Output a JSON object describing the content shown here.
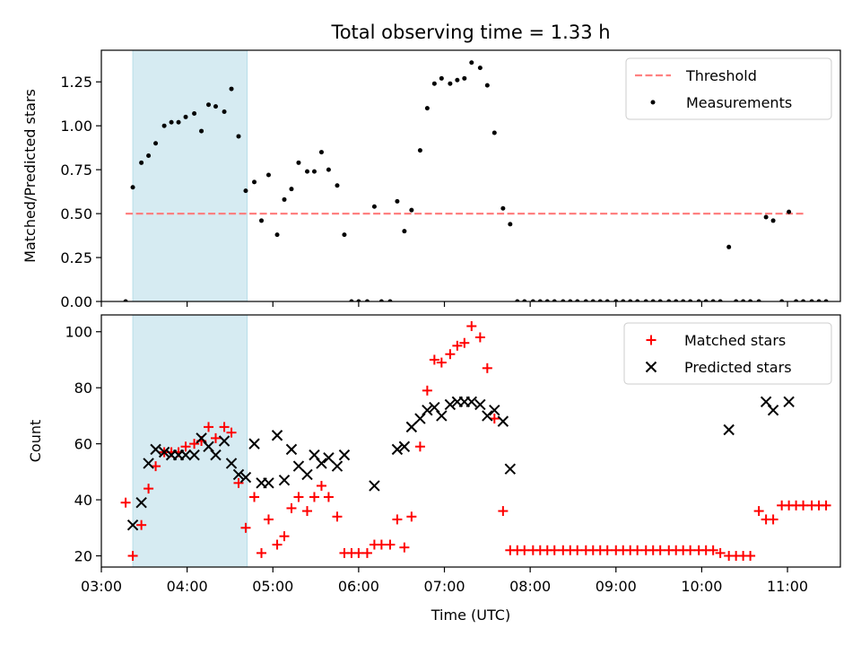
{
  "figure": {
    "title": "Total observing time = 1.33 h"
  },
  "colors": {
    "threshold": "#ff8080",
    "measurement": "#000000",
    "matched": "#ff0000",
    "predicted": "#000000",
    "shade": "#add8e6"
  },
  "chart_data": [
    {
      "type": "scatter",
      "panel": "top",
      "xlabel": "",
      "ylabel": "Matched/Predicted stars",
      "xlim": [
        "03:00",
        "11:37"
      ],
      "ylim": [
        0,
        1.43
      ],
      "yticks": [
        0.0,
        0.25,
        0.5,
        0.75,
        1.0,
        1.25
      ],
      "ytick_labels": [
        "0.00",
        "0.25",
        "0.50",
        "0.75",
        "1.00",
        "1.25"
      ],
      "shaded_region": [
        "03:22",
        "04:42"
      ],
      "legend": {
        "position": "top-right",
        "entries": [
          "Threshold",
          "Measurements"
        ]
      },
      "threshold": {
        "name": "Threshold",
        "value": 0.5,
        "x_range": [
          "03:17",
          "11:12"
        ],
        "style": "dashed"
      },
      "series": [
        {
          "name": "Measurements",
          "points": [
            [
              "03:17",
              0.0
            ],
            [
              "03:22",
              0.65
            ],
            [
              "03:28",
              0.79
            ],
            [
              "03:33",
              0.83
            ],
            [
              "03:38",
              0.9
            ],
            [
              "03:44",
              1.0
            ],
            [
              "03:49",
              1.02
            ],
            [
              "03:54",
              1.02
            ],
            [
              "03:59",
              1.05
            ],
            [
              "04:05",
              1.07
            ],
            [
              "04:10",
              0.97
            ],
            [
              "04:15",
              1.12
            ],
            [
              "04:20",
              1.11
            ],
            [
              "04:26",
              1.08
            ],
            [
              "04:31",
              1.21
            ],
            [
              "04:36",
              0.94
            ],
            [
              "04:41",
              0.63
            ],
            [
              "04:47",
              0.68
            ],
            [
              "04:52",
              0.46
            ],
            [
              "04:57",
              0.72
            ],
            [
              "05:03",
              0.38
            ],
            [
              "05:08",
              0.58
            ],
            [
              "05:13",
              0.64
            ],
            [
              "05:18",
              0.79
            ],
            [
              "05:24",
              0.74
            ],
            [
              "05:29",
              0.74
            ],
            [
              "05:34",
              0.85
            ],
            [
              "05:39",
              0.75
            ],
            [
              "05:45",
              0.66
            ],
            [
              "05:50",
              0.38
            ],
            [
              "05:55",
              0.0
            ],
            [
              "06:00",
              0.0
            ],
            [
              "06:06",
              0.0
            ],
            [
              "06:11",
              0.54
            ],
            [
              "06:16",
              0.0
            ],
            [
              "06:22",
              0.0
            ],
            [
              "06:27",
              0.57
            ],
            [
              "06:32",
              0.4
            ],
            [
              "06:37",
              0.52
            ],
            [
              "06:43",
              0.86
            ],
            [
              "06:48",
              1.1
            ],
            [
              "06:53",
              1.24
            ],
            [
              "06:58",
              1.27
            ],
            [
              "07:04",
              1.24
            ],
            [
              "07:09",
              1.26
            ],
            [
              "07:14",
              1.27
            ],
            [
              "07:19",
              1.36
            ],
            [
              "07:25",
              1.33
            ],
            [
              "07:30",
              1.23
            ],
            [
              "07:35",
              0.96
            ],
            [
              "07:41",
              0.53
            ],
            [
              "07:46",
              0.44
            ],
            [
              "07:51",
              0.0
            ],
            [
              "07:56",
              0.0
            ],
            [
              "08:02",
              0.0
            ],
            [
              "08:07",
              0.0
            ],
            [
              "08:12",
              0.0
            ],
            [
              "08:17",
              0.0
            ],
            [
              "08:23",
              0.0
            ],
            [
              "08:28",
              0.0
            ],
            [
              "08:33",
              0.0
            ],
            [
              "08:39",
              0.0
            ],
            [
              "08:44",
              0.0
            ],
            [
              "08:49",
              0.0
            ],
            [
              "08:54",
              0.0
            ],
            [
              "09:00",
              0.0
            ],
            [
              "09:05",
              0.0
            ],
            [
              "09:10",
              0.0
            ],
            [
              "09:15",
              0.0
            ],
            [
              "09:21",
              0.0
            ],
            [
              "09:26",
              0.0
            ],
            [
              "09:31",
              0.0
            ],
            [
              "09:37",
              0.0
            ],
            [
              "09:42",
              0.0
            ],
            [
              "09:47",
              0.0
            ],
            [
              "09:52",
              0.0
            ],
            [
              "09:58",
              0.0
            ],
            [
              "10:03",
              0.0
            ],
            [
              "10:08",
              0.0
            ],
            [
              "10:13",
              0.0
            ],
            [
              "10:19",
              0.31
            ],
            [
              "10:24",
              0.0
            ],
            [
              "10:29",
              0.0
            ],
            [
              "10:34",
              0.0
            ],
            [
              "10:40",
              0.0
            ],
            [
              "10:45",
              0.48
            ],
            [
              "10:50",
              0.46
            ],
            [
              "10:56",
              0.0
            ],
            [
              "11:01",
              0.51
            ],
            [
              "11:06",
              0.0
            ],
            [
              "11:11",
              0.0
            ],
            [
              "11:17",
              0.0
            ],
            [
              "11:22",
              0.0
            ],
            [
              "11:27",
              0.0
            ]
          ]
        }
      ]
    },
    {
      "type": "scatter",
      "panel": "bottom",
      "xlabel": "Time (UTC)",
      "ylabel": "Count",
      "xlim": [
        "03:00",
        "11:37"
      ],
      "ylim": [
        16,
        106
      ],
      "xticks": [
        "03:00",
        "04:00",
        "05:00",
        "06:00",
        "07:00",
        "08:00",
        "09:00",
        "10:00",
        "11:00"
      ],
      "yticks": [
        20,
        40,
        60,
        80,
        100
      ],
      "ytick_labels": [
        "20",
        "40",
        "60",
        "80",
        "100"
      ],
      "shaded_region": [
        "03:22",
        "04:42"
      ],
      "legend": {
        "position": "top-right",
        "entries": [
          "Matched stars",
          "Predicted stars"
        ]
      },
      "series": [
        {
          "name": "Matched stars",
          "marker": "plus",
          "points": [
            [
              "03:17",
              39
            ],
            [
              "03:22",
              20
            ],
            [
              "03:28",
              31
            ],
            [
              "03:33",
              44
            ],
            [
              "03:38",
              52
            ],
            [
              "03:44",
              57
            ],
            [
              "03:49",
              57
            ],
            [
              "03:54",
              57
            ],
            [
              "03:59",
              59
            ],
            [
              "04:05",
              60
            ],
            [
              "04:10",
              61
            ],
            [
              "04:15",
              66
            ],
            [
              "04:20",
              62
            ],
            [
              "04:26",
              66
            ],
            [
              "04:31",
              64
            ],
            [
              "04:36",
              46
            ],
            [
              "04:41",
              30
            ],
            [
              "04:47",
              41
            ],
            [
              "04:52",
              21
            ],
            [
              "04:57",
              33
            ],
            [
              "05:03",
              24
            ],
            [
              "05:08",
              27
            ],
            [
              "05:13",
              37
            ],
            [
              "05:18",
              41
            ],
            [
              "05:24",
              36
            ],
            [
              "05:29",
              41
            ],
            [
              "05:34",
              45
            ],
            [
              "05:39",
              41
            ],
            [
              "05:45",
              34
            ],
            [
              "05:50",
              21
            ],
            [
              "05:55",
              21
            ],
            [
              "06:00",
              21
            ],
            [
              "06:06",
              21
            ],
            [
              "06:11",
              24
            ],
            [
              "06:16",
              24
            ],
            [
              "06:22",
              24
            ],
            [
              "06:27",
              33
            ],
            [
              "06:32",
              23
            ],
            [
              "06:37",
              34
            ],
            [
              "06:43",
              59
            ],
            [
              "06:48",
              79
            ],
            [
              "06:53",
              90
            ],
            [
              "06:58",
              89
            ],
            [
              "07:04",
              92
            ],
            [
              "07:09",
              95
            ],
            [
              "07:14",
              96
            ],
            [
              "07:19",
              102
            ],
            [
              "07:25",
              98
            ],
            [
              "07:30",
              87
            ],
            [
              "07:35",
              69
            ],
            [
              "07:41",
              36
            ],
            [
              "07:46",
              22
            ],
            [
              "07:51",
              22
            ],
            [
              "07:56",
              22
            ],
            [
              "08:02",
              22
            ],
            [
              "08:07",
              22
            ],
            [
              "08:12",
              22
            ],
            [
              "08:17",
              22
            ],
            [
              "08:23",
              22
            ],
            [
              "08:28",
              22
            ],
            [
              "08:33",
              22
            ],
            [
              "08:39",
              22
            ],
            [
              "08:44",
              22
            ],
            [
              "08:49",
              22
            ],
            [
              "08:54",
              22
            ],
            [
              "09:00",
              22
            ],
            [
              "09:05",
              22
            ],
            [
              "09:10",
              22
            ],
            [
              "09:15",
              22
            ],
            [
              "09:21",
              22
            ],
            [
              "09:26",
              22
            ],
            [
              "09:31",
              22
            ],
            [
              "09:37",
              22
            ],
            [
              "09:42",
              22
            ],
            [
              "09:47",
              22
            ],
            [
              "09:52",
              22
            ],
            [
              "09:58",
              22
            ],
            [
              "10:03",
              22
            ],
            [
              "10:08",
              22
            ],
            [
              "10:13",
              21
            ],
            [
              "10:19",
              20
            ],
            [
              "10:24",
              20
            ],
            [
              "10:29",
              20
            ],
            [
              "10:34",
              20
            ],
            [
              "10:40",
              36
            ],
            [
              "10:45",
              33
            ],
            [
              "10:50",
              33
            ],
            [
              "10:56",
              38
            ],
            [
              "11:01",
              38
            ],
            [
              "11:06",
              38
            ],
            [
              "11:11",
              38
            ],
            [
              "11:17",
              38
            ],
            [
              "11:22",
              38
            ],
            [
              "11:27",
              38
            ]
          ]
        },
        {
          "name": "Predicted stars",
          "marker": "x",
          "points": [
            [
              "03:22",
              31
            ],
            [
              "03:28",
              39
            ],
            [
              "03:33",
              53
            ],
            [
              "03:38",
              58
            ],
            [
              "03:44",
              57
            ],
            [
              "03:49",
              56
            ],
            [
              "03:54",
              56
            ],
            [
              "03:59",
              56
            ],
            [
              "04:05",
              56
            ],
            [
              "04:10",
              62
            ],
            [
              "04:15",
              59
            ],
            [
              "04:20",
              56
            ],
            [
              "04:26",
              61
            ],
            [
              "04:31",
              53
            ],
            [
              "04:36",
              49
            ],
            [
              "04:41",
              48
            ],
            [
              "04:47",
              60
            ],
            [
              "04:52",
              46
            ],
            [
              "04:57",
              46
            ],
            [
              "05:03",
              63
            ],
            [
              "05:08",
              47
            ],
            [
              "05:13",
              58
            ],
            [
              "05:18",
              52
            ],
            [
              "05:24",
              49
            ],
            [
              "05:29",
              56
            ],
            [
              "05:34",
              53
            ],
            [
              "05:39",
              55
            ],
            [
              "05:45",
              52
            ],
            [
              "05:50",
              56
            ],
            [
              "06:11",
              45
            ],
            [
              "06:27",
              58
            ],
            [
              "06:32",
              59
            ],
            [
              "06:37",
              66
            ],
            [
              "06:43",
              69
            ],
            [
              "06:48",
              72
            ],
            [
              "06:53",
              73
            ],
            [
              "06:58",
              70
            ],
            [
              "07:04",
              74
            ],
            [
              "07:09",
              75
            ],
            [
              "07:14",
              75
            ],
            [
              "07:19",
              75
            ],
            [
              "07:25",
              74
            ],
            [
              "07:30",
              70
            ],
            [
              "07:35",
              72
            ],
            [
              "07:41",
              68
            ],
            [
              "07:46",
              51
            ],
            [
              "10:19",
              65
            ],
            [
              "10:45",
              75
            ],
            [
              "10:50",
              72
            ],
            [
              "11:01",
              75
            ]
          ]
        }
      ]
    }
  ]
}
